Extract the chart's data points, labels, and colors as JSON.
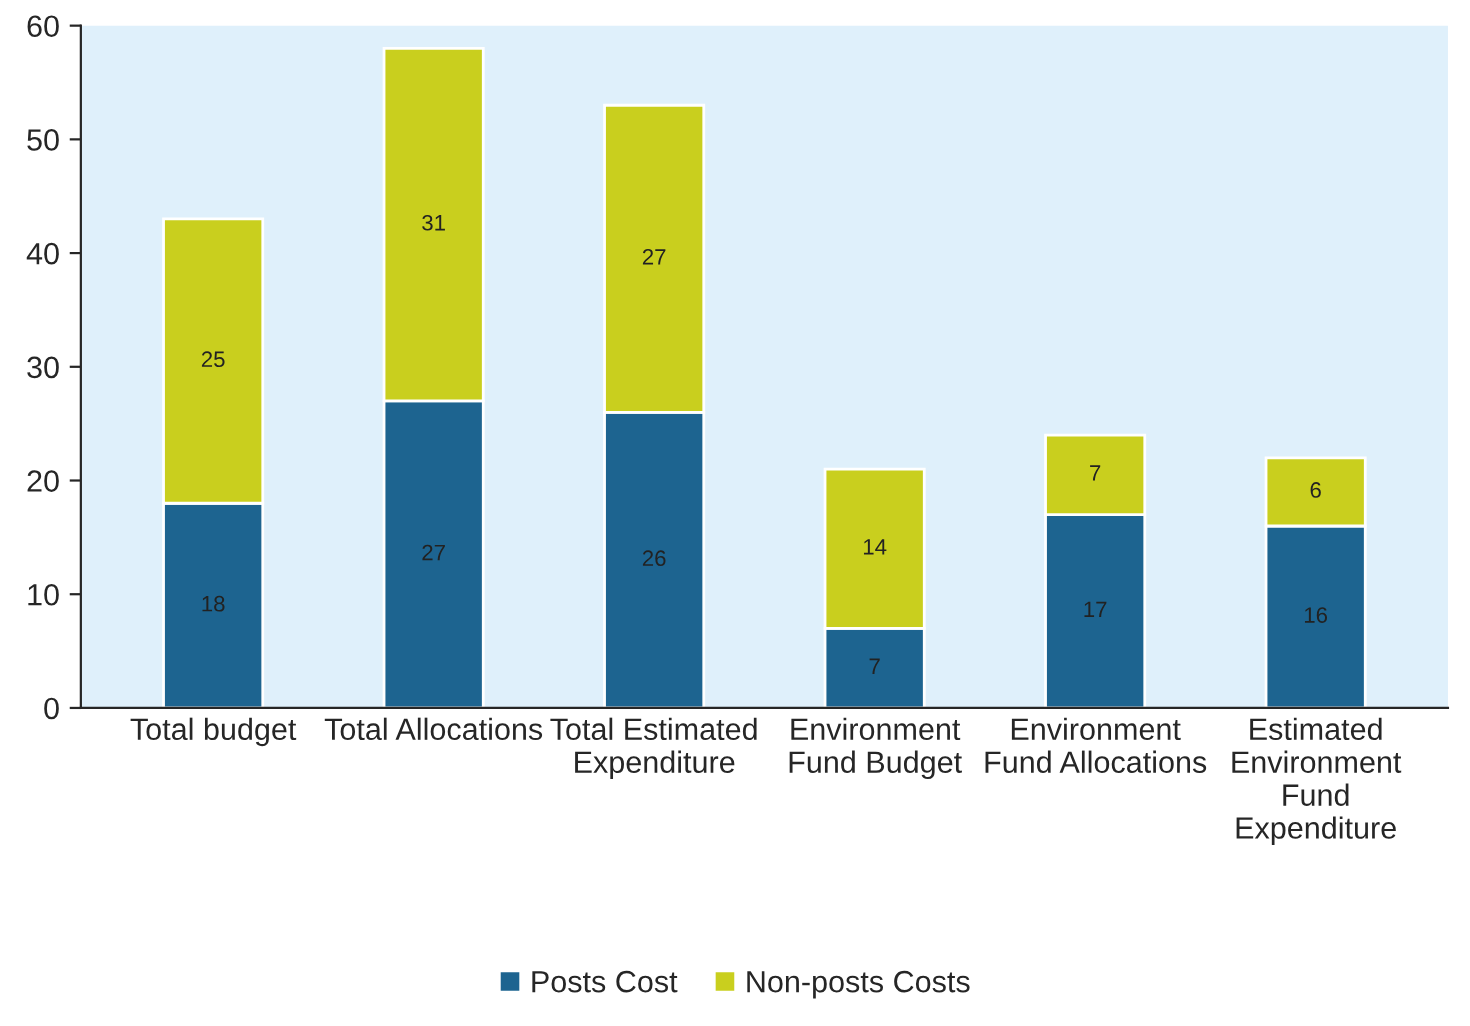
{
  "chart_data": {
    "type": "bar",
    "stacked": true,
    "categories": [
      "Total budget",
      "Total Allocations",
      "Total Estimated\nExpenditure",
      "Environment\nFund Budget",
      "Environment\nFund Allocations",
      "Estimated\nEnvironment\nFund\nExpenditure"
    ],
    "series": [
      {
        "name": "Posts Cost",
        "color": "#1d6490",
        "values": [
          18,
          27,
          26,
          7,
          17,
          16
        ]
      },
      {
        "name": "Non-posts Costs",
        "color": "#c9cf1e",
        "values": [
          25,
          31,
          27,
          14,
          7,
          6
        ]
      }
    ],
    "ylim": [
      0,
      60
    ],
    "yticks": [
      0,
      10,
      20,
      30,
      40,
      50,
      60
    ],
    "data_labels": true,
    "grid": false,
    "legend": "bottom"
  }
}
